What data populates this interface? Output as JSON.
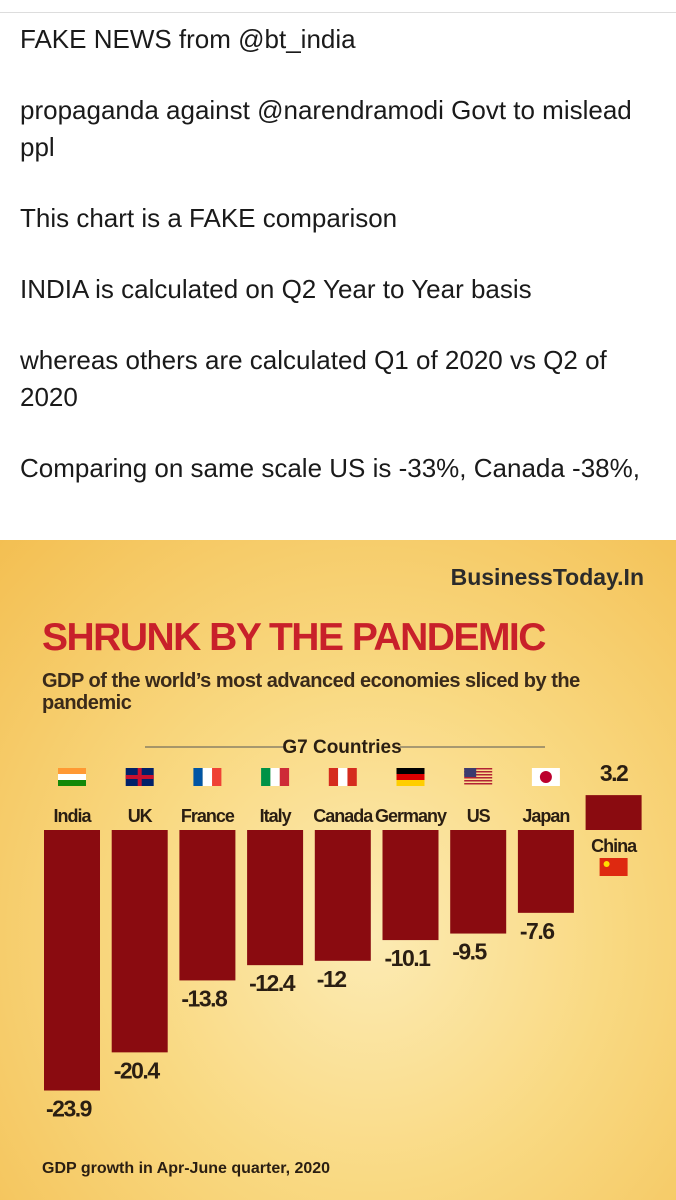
{
  "tweet": {
    "paragraphs": [
      "FAKE NEWS from @bt_india",
      "propaganda against @narendramodi Govt to mislead ppl",
      "This chart is a FAKE comparison",
      "INDIA is calculated on Q2 Year to Year basis",
      "whereas others are calculated Q1 of 2020 vs Q2 of 2020",
      "Comparing on same scale US is -33%, Canada -38%,"
    ]
  },
  "chart_data": {
    "type": "bar",
    "source": "BusinessToday.In",
    "title": "SHRUNK BY THE PANDEMIC",
    "subtitle": "GDP of the world’s most advanced economies sliced by the pandemic",
    "group_label": "G7 Countries",
    "footnote": "GDP growth in Apr-June quarter, 2020",
    "categories": [
      "India",
      "UK",
      "France",
      "Italy",
      "Canada",
      "Germany",
      "US",
      "Japan",
      "China"
    ],
    "values": [
      -23.9,
      -20.4,
      -13.8,
      -12.4,
      -12,
      -10.1,
      -9.5,
      -7.6,
      3.2
    ],
    "color": "#8a0b10"
  }
}
